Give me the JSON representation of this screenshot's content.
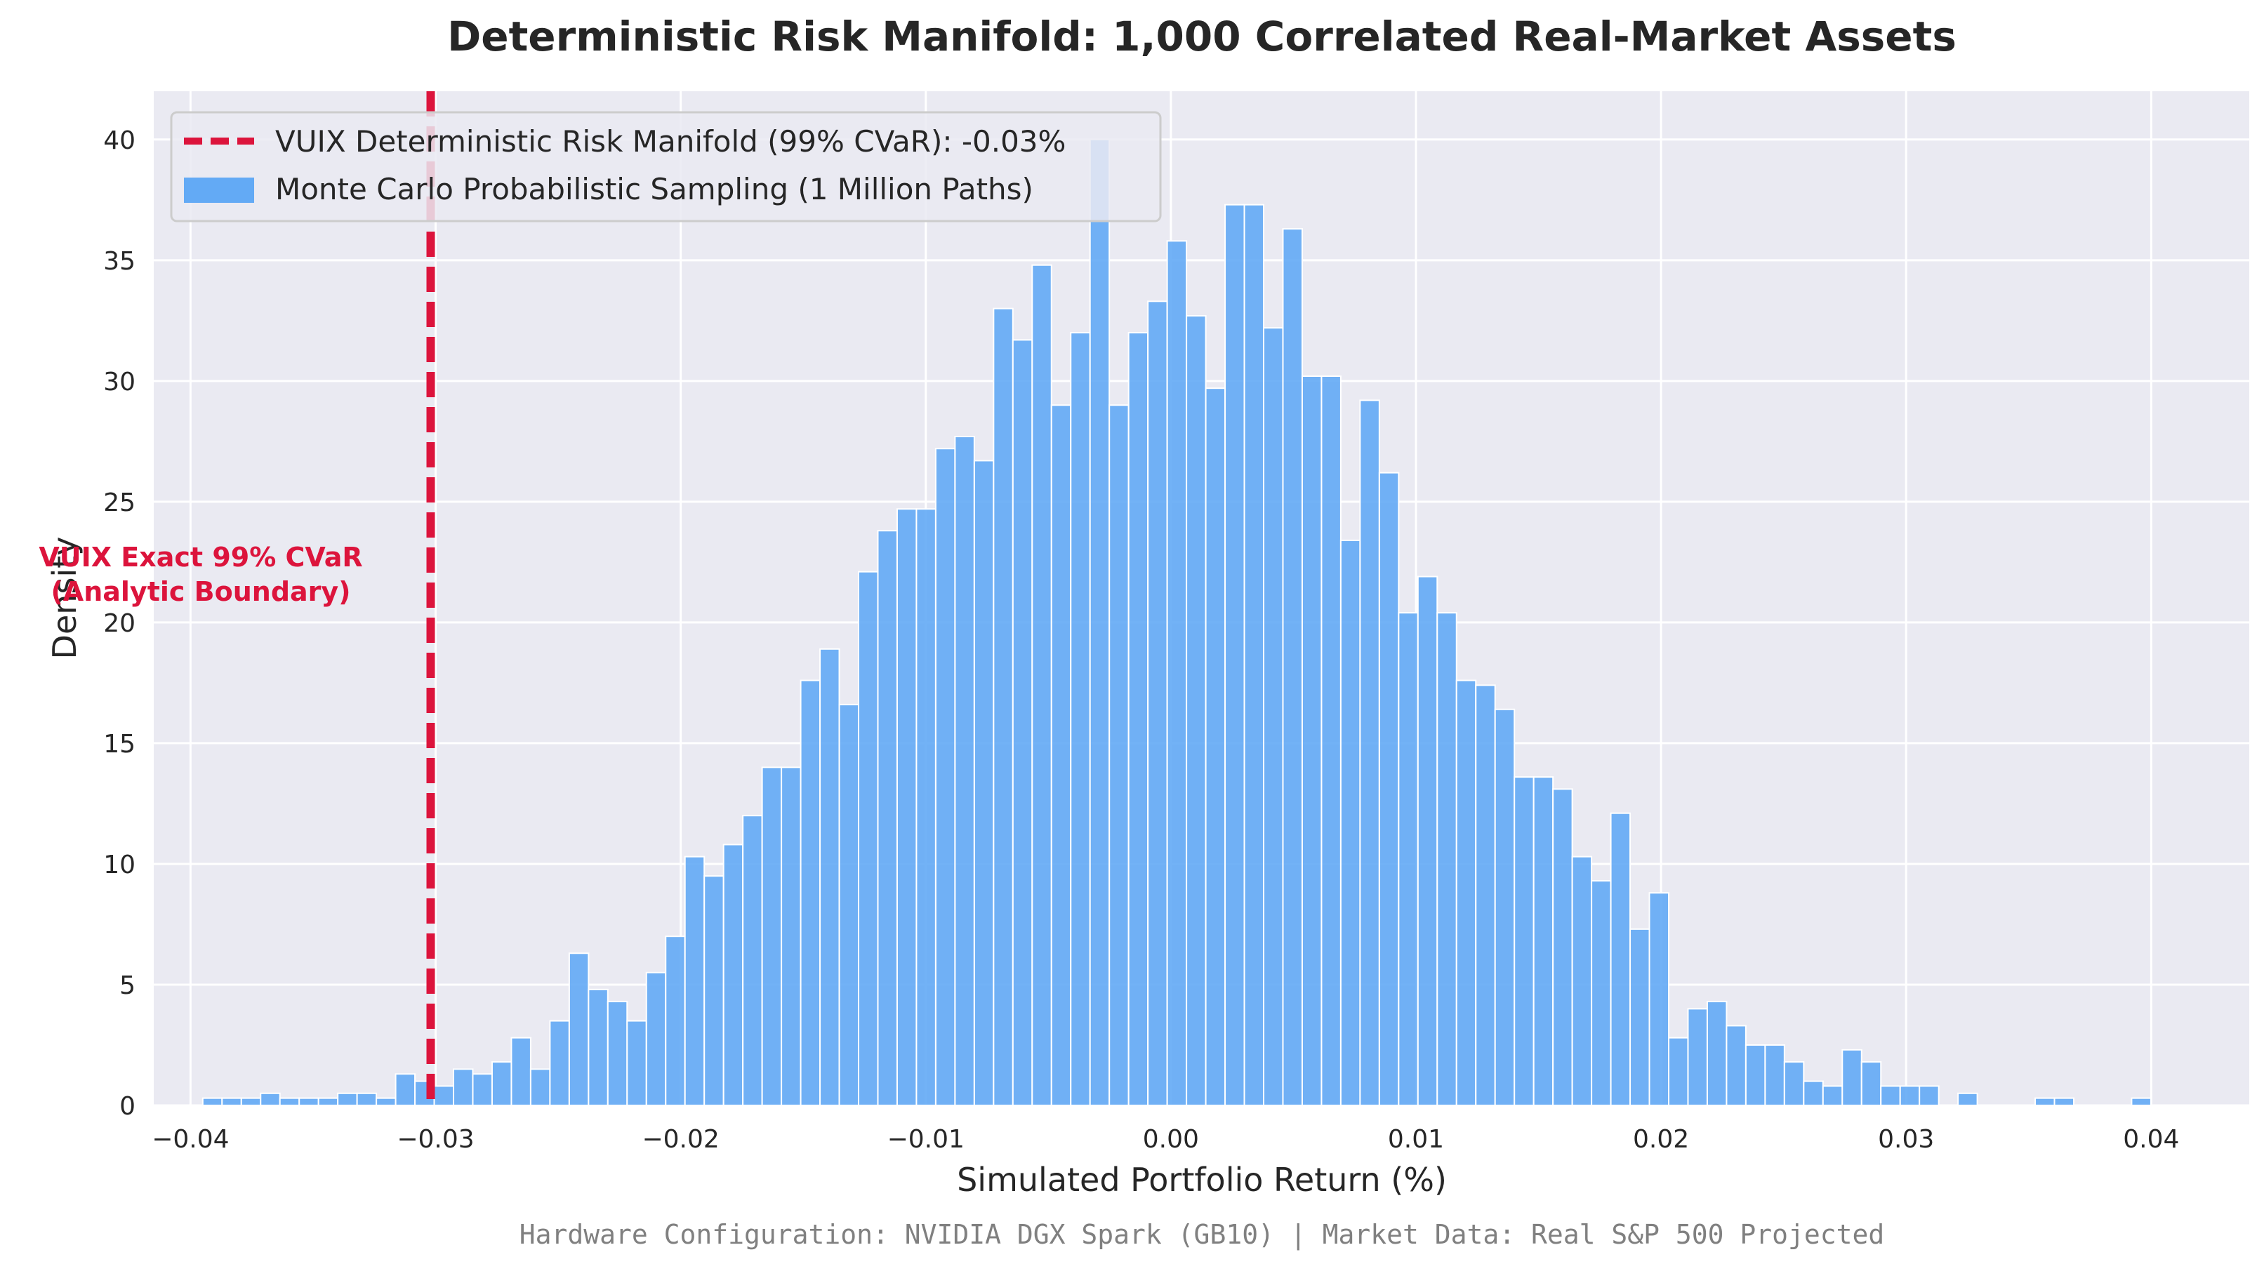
{
  "chart_data": {
    "type": "bar",
    "title": "Deterministic Risk Manifold: 1,000 Correlated Real-Market Assets",
    "xlabel": "Simulated Portfolio Return (%)",
    "ylabel": "Density",
    "xlim": [
      -0.0415,
      0.044
    ],
    "ylim": [
      0,
      42
    ],
    "grid": true,
    "legend_position": "top-left",
    "x_ticks": [
      -0.04,
      -0.03,
      -0.02,
      -0.01,
      0.0,
      0.01,
      0.02,
      0.03,
      0.04
    ],
    "x_tick_labels": [
      "−0.04",
      "−0.03",
      "−0.02",
      "−0.01",
      "0.00",
      "0.01",
      "0.02",
      "0.03",
      "0.04"
    ],
    "y_ticks": [
      0,
      5,
      10,
      15,
      20,
      25,
      30,
      35,
      40
    ],
    "y_tick_labels": [
      "0",
      "5",
      "10",
      "15",
      "20",
      "25",
      "30",
      "35",
      "40"
    ],
    "histogram": {
      "name": "Monte Carlo Probabilistic Sampling (1 Million Paths)",
      "color": "#63aaf5",
      "bin_start": -0.0395,
      "bin_width": 0.000787,
      "values": [
        0.3,
        0.3,
        0.3,
        0.5,
        0.3,
        0.3,
        0.3,
        0.5,
        0.5,
        0.3,
        1.3,
        1.0,
        0.8,
        1.5,
        1.3,
        1.8,
        2.8,
        1.5,
        3.5,
        6.3,
        4.8,
        4.3,
        3.5,
        5.5,
        7.0,
        10.3,
        9.5,
        10.8,
        12.0,
        14.0,
        14.0,
        17.6,
        18.9,
        16.6,
        22.1,
        23.8,
        24.7,
        24.7,
        27.2,
        27.7,
        26.7,
        33.0,
        31.7,
        34.8,
        29.0,
        32.0,
        40.0,
        29.0,
        32.0,
        33.3,
        35.8,
        32.7,
        29.7,
        37.3,
        37.3,
        32.2,
        36.3,
        30.2,
        30.2,
        23.4,
        29.2,
        26.2,
        20.4,
        21.9,
        20.4,
        17.6,
        17.4,
        16.4,
        13.6,
        13.6,
        13.1,
        10.3,
        9.3,
        12.1,
        7.3,
        8.8,
        2.8,
        4.0,
        4.3,
        3.3,
        2.5,
        2.5,
        1.8,
        1.0,
        0.8,
        2.3,
        1.8,
        0.8,
        0.8,
        0.8,
        0.0,
        0.5,
        0.0,
        0.0,
        0.0,
        0.3,
        0.3,
        0.0,
        0.0,
        0.0,
        0.3
      ]
    },
    "cvar_line": {
      "x": -0.0302,
      "color": "#dc143c",
      "legend_label": "VUIX Deterministic Risk Manifold (99% CVaR): -0.03%",
      "annotation_line1": "VUIX Exact 99% CVaR",
      "annotation_line2": "(Analytic Boundary)"
    }
  },
  "footer": {
    "text": "Hardware Configuration: NVIDIA DGX Spark (GB10) | Market Data: Real S&P 500 Projected"
  },
  "colors": {
    "plot_background": "#eaeaf2",
    "grid": "#ffffff",
    "text": "#262626",
    "footer": "#808080",
    "annotation": "#dc143c"
  }
}
